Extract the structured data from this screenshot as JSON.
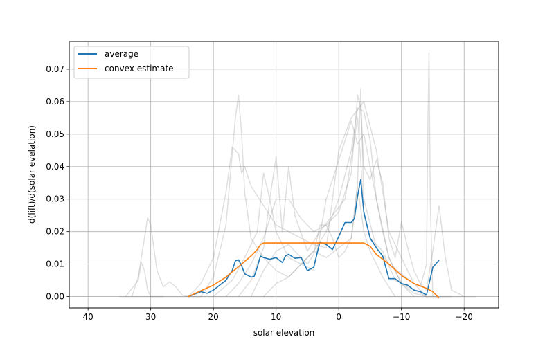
{
  "chart_data": {
    "type": "line",
    "title": "",
    "xlabel": "solar elevation",
    "ylabel": "d(lift)/d(solar evelation)",
    "xlim": [
      43,
      -25.5
    ],
    "ylim": [
      -0.0035,
      0.0785
    ],
    "x_inverted": true,
    "grid": true,
    "legend_position": "upper-left",
    "xticks": [
      40,
      30,
      20,
      10,
      0,
      -10,
      -20
    ],
    "xtick_labels": [
      "40",
      "30",
      "20",
      "10",
      "0",
      "−10",
      "−20"
    ],
    "yticks": [
      0.0,
      0.01,
      0.02,
      0.03,
      0.04,
      0.05,
      0.06,
      0.07
    ],
    "ytick_labels": [
      "0.00",
      "0.01",
      "0.02",
      "0.03",
      "0.04",
      "0.05",
      "0.06",
      "0.07"
    ],
    "colors": {
      "average": "#1f77b4",
      "convex": "#ff7f0e",
      "individual": "#808080"
    },
    "series": [
      {
        "name": "average",
        "x": [
          24,
          22,
          21,
          20,
          19,
          18,
          17,
          16.5,
          16,
          15.5,
          15,
          14.5,
          14,
          13.5,
          13,
          12.5,
          12,
          11,
          10,
          9,
          8.5,
          8,
          7,
          6,
          5,
          4,
          3,
          2,
          1,
          0,
          -1,
          -2,
          -2.5,
          -3,
          -3.5,
          -4,
          -5,
          -6,
          -7,
          -8,
          -9,
          -10,
          -11,
          -12,
          -13,
          -14,
          -15,
          -16
        ],
        "values": [
          0.0,
          0.0015,
          0.001,
          0.002,
          0.0035,
          0.005,
          0.008,
          0.011,
          0.0113,
          0.0095,
          0.007,
          0.0065,
          0.006,
          0.0062,
          0.009,
          0.0125,
          0.012,
          0.0115,
          0.012,
          0.0105,
          0.0125,
          0.013,
          0.0118,
          0.012,
          0.008,
          0.009,
          0.0168,
          0.016,
          0.0145,
          0.0185,
          0.0228,
          0.0228,
          0.024,
          0.031,
          0.036,
          0.026,
          0.018,
          0.015,
          0.0125,
          0.0055,
          0.0055,
          0.004,
          0.0035,
          0.002,
          0.0015,
          0.0005,
          0.009,
          0.0112
        ]
      },
      {
        "name": "convex estimate",
        "x": [
          24,
          22,
          20,
          18,
          16,
          14,
          13,
          12.5,
          12,
          6,
          0,
          -4,
          -5,
          -6,
          -8,
          -10,
          -12,
          -14,
          -15,
          -16
        ],
        "values": [
          0.0,
          0.0018,
          0.0035,
          0.006,
          0.0092,
          0.0125,
          0.0145,
          0.016,
          0.0165,
          0.0165,
          0.0165,
          0.0165,
          0.0155,
          0.013,
          0.01,
          0.0065,
          0.004,
          0.0025,
          0.0015,
          -0.0005
        ]
      }
    ],
    "individual_curves": [
      {
        "x": [
          33,
          32,
          31,
          30.5,
          30,
          29,
          28,
          27,
          26,
          25,
          24,
          22
        ],
        "values": [
          0.0,
          0.006,
          0.018,
          0.0243,
          0.022,
          0.008,
          0.003,
          0.0045,
          0.003,
          0.0005,
          0.0,
          0.0
        ]
      },
      {
        "x": [
          34,
          32,
          31.5,
          31,
          30.5,
          30,
          28
        ],
        "values": [
          0.0,
          0.005,
          0.0105,
          0.008,
          0.002,
          0.0,
          0.0
        ]
      },
      {
        "x": [
          24,
          22,
          20,
          18,
          17,
          16,
          15.5,
          15,
          14,
          12,
          10,
          8,
          6,
          4,
          2,
          0,
          -2,
          -4,
          -6,
          -8,
          -10,
          -12,
          -14,
          -16,
          -18
        ],
        "values": [
          0.0,
          0.004,
          0.012,
          0.032,
          0.046,
          0.044,
          0.038,
          0.04,
          0.034,
          0.028,
          0.022,
          0.02,
          0.018,
          0.016,
          0.015,
          0.045,
          0.055,
          0.06,
          0.045,
          0.02,
          0.012,
          0.004,
          0.0,
          0.0,
          0.0
        ]
      },
      {
        "x": [
          22,
          20,
          18,
          16.5,
          16,
          15.5,
          15,
          14,
          12,
          10,
          8,
          6,
          4,
          2,
          0,
          -2,
          -3,
          -4,
          -5,
          -6,
          -8,
          -10,
          -12,
          -14
        ],
        "values": [
          0.0,
          0.006,
          0.022,
          0.055,
          0.062,
          0.05,
          0.032,
          0.018,
          0.012,
          0.008,
          0.006,
          0.01,
          0.014,
          0.02,
          0.03,
          0.045,
          0.058,
          0.057,
          0.048,
          0.03,
          0.012,
          0.004,
          0.001,
          0.0
        ]
      },
      {
        "x": [
          20,
          17,
          15,
          13,
          12,
          11,
          10,
          9,
          8,
          7,
          5,
          3,
          1,
          -1,
          -3,
          -3.5,
          -4,
          -5,
          -7,
          -9,
          -11,
          -13,
          -14
        ],
        "values": [
          0.0,
          0.005,
          0.012,
          0.02,
          0.038,
          0.03,
          0.043,
          0.02,
          0.04,
          0.025,
          0.014,
          0.02,
          0.025,
          0.03,
          0.055,
          0.042,
          0.025,
          0.018,
          0.014,
          0.005,
          0.003,
          0.001,
          0.0
        ]
      },
      {
        "x": [
          18,
          16,
          14,
          12,
          10,
          8,
          6,
          4,
          2,
          0,
          -2,
          -3,
          -3.5,
          -4,
          -5,
          -6,
          -7,
          -8,
          -9,
          -10,
          -11,
          -12,
          -13,
          -14,
          -15,
          -16,
          -17,
          -18,
          -20
        ],
        "values": [
          0.0,
          0.004,
          0.01,
          0.018,
          0.03,
          0.03,
          0.024,
          0.02,
          0.022,
          0.026,
          0.038,
          0.062,
          0.058,
          0.04,
          0.036,
          0.042,
          0.035,
          0.018,
          0.012,
          0.023,
          0.015,
          0.008,
          0.004,
          0.002,
          0.014,
          0.028,
          0.012,
          0.002,
          0.0
        ]
      },
      {
        "x": [
          16,
          14,
          12,
          11,
          10,
          8,
          6,
          4,
          2,
          0,
          -1,
          -2,
          -3,
          -4,
          -5,
          -6,
          -7,
          -8,
          -10,
          -12
        ],
        "values": [
          0.0,
          0.005,
          0.015,
          0.03,
          0.02,
          0.012,
          0.01,
          0.008,
          0.03,
          0.042,
          0.048,
          0.054,
          0.047,
          0.05,
          0.04,
          0.03,
          0.02,
          0.012,
          0.004,
          0.0
        ]
      },
      {
        "x": [
          14,
          12,
          10,
          8,
          6,
          5,
          4,
          3,
          2,
          1,
          0,
          -1,
          -2,
          -3,
          -4,
          -5,
          -7,
          -9
        ],
        "values": [
          0.0,
          0.008,
          0.014,
          0.016,
          0.012,
          0.01,
          0.013,
          0.022,
          0.022,
          0.018,
          0.012,
          0.014,
          0.018,
          0.034,
          0.02,
          0.014,
          0.006,
          0.0
        ]
      },
      {
        "x": [
          12,
          10,
          8,
          6,
          4,
          2,
          0,
          -2,
          -3,
          -3.5,
          -4,
          -6,
          -8,
          -10,
          -12,
          -13,
          -14,
          -14.2,
          -14.4,
          -14.6,
          -15
        ],
        "values": [
          0.0,
          0.004,
          0.006,
          0.01,
          0.014,
          0.012,
          0.015,
          0.018,
          0.035,
          0.064,
          0.03,
          0.015,
          0.01,
          0.007,
          0.004,
          0.003,
          0.01,
          0.05,
          0.075,
          0.03,
          0.0
        ]
      },
      {
        "x": [
          35,
          30,
          25,
          20,
          15,
          10,
          5,
          0,
          -5,
          -10,
          -15,
          -20,
          -22
        ],
        "values": [
          0.0,
          0.0,
          0.0,
          0.0,
          0.0,
          0.0,
          0.0,
          0.0,
          0.0,
          0.0,
          0.0,
          0.0,
          0.0
        ]
      }
    ]
  }
}
